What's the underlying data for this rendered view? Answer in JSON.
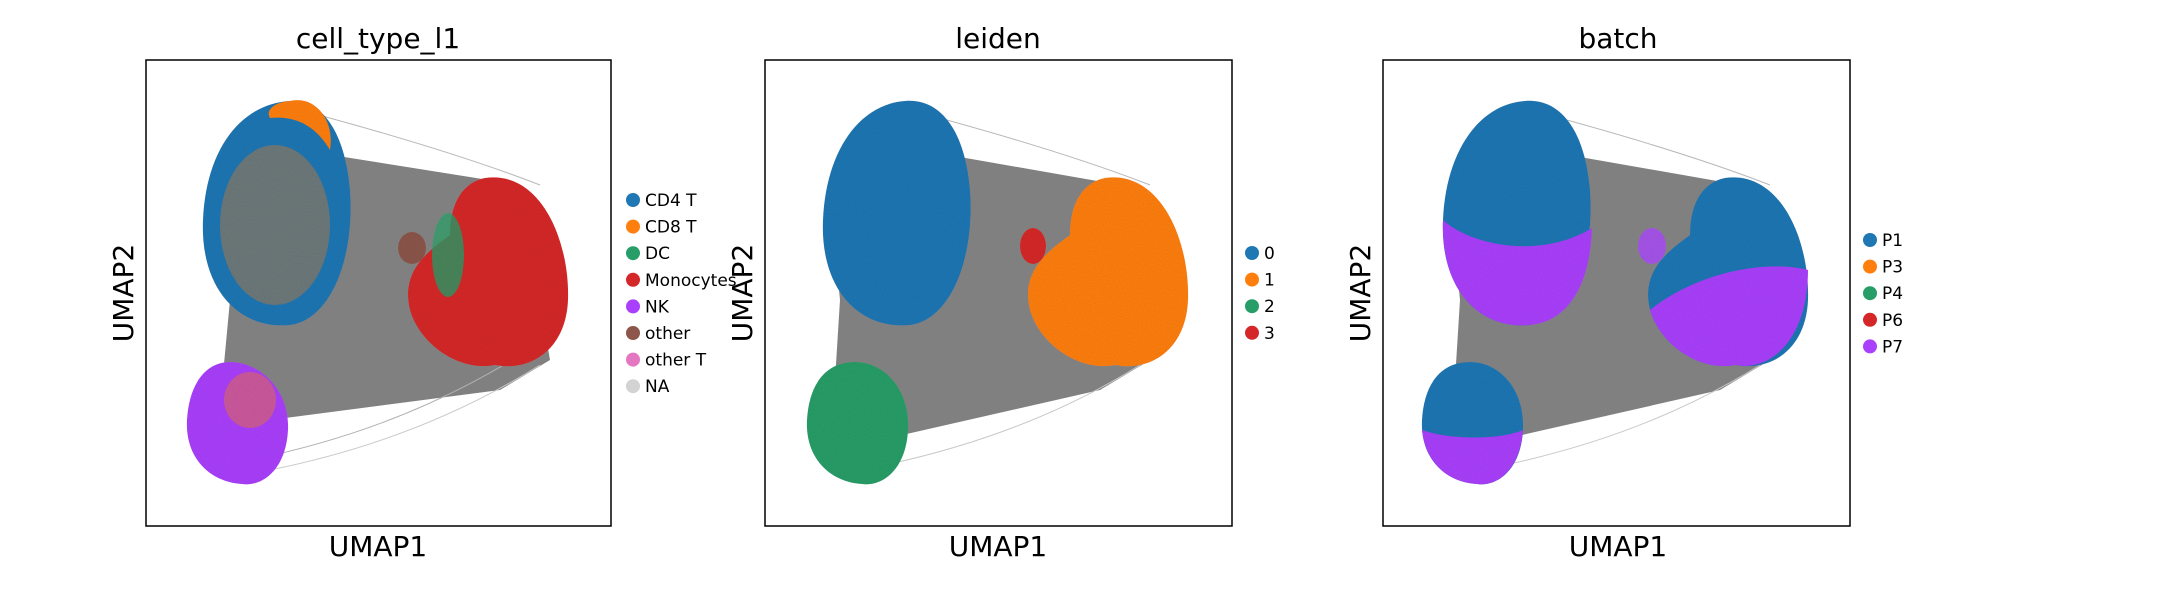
{
  "chart_data": [
    {
      "type": "scatter",
      "title": "cell_type_l1",
      "xlabel": "UMAP1",
      "ylabel": "UMAP2",
      "grid": false,
      "ticks": "none",
      "legend_position": "right",
      "edges": "gray graph connectivity lines between clusters",
      "series": [
        {
          "name": "CD4 T",
          "color": "#1f77b4"
        },
        {
          "name": "CD8 T",
          "color": "#ff7f0e"
        },
        {
          "name": "DC",
          "color": "#279e68"
        },
        {
          "name": "Monocytes",
          "color": "#d62728"
        },
        {
          "name": "NK",
          "color": "#aa40fc"
        },
        {
          "name": "other",
          "color": "#8c564b"
        },
        {
          "name": "other T",
          "color": "#e377c2"
        },
        {
          "name": "NA",
          "color": "#d3d3d3"
        }
      ]
    },
    {
      "type": "scatter",
      "title": "leiden",
      "xlabel": "UMAP1",
      "ylabel": "UMAP2",
      "grid": false,
      "ticks": "none",
      "legend_position": "right",
      "edges": "gray graph connectivity lines between clusters",
      "series": [
        {
          "name": "0",
          "color": "#1f77b4"
        },
        {
          "name": "1",
          "color": "#ff7f0e"
        },
        {
          "name": "2",
          "color": "#279e68"
        },
        {
          "name": "3",
          "color": "#d62728"
        }
      ]
    },
    {
      "type": "scatter",
      "title": "batch",
      "xlabel": "UMAP1",
      "ylabel": "UMAP2",
      "grid": false,
      "ticks": "none",
      "legend_position": "right",
      "edges": "gray graph connectivity lines between clusters",
      "series": [
        {
          "name": "P1",
          "color": "#1f77b4"
        },
        {
          "name": "P3",
          "color": "#ff7f0e"
        },
        {
          "name": "P4",
          "color": "#279e68"
        },
        {
          "name": "P6",
          "color": "#d62728"
        },
        {
          "name": "P7",
          "color": "#aa40fc"
        }
      ]
    }
  ]
}
